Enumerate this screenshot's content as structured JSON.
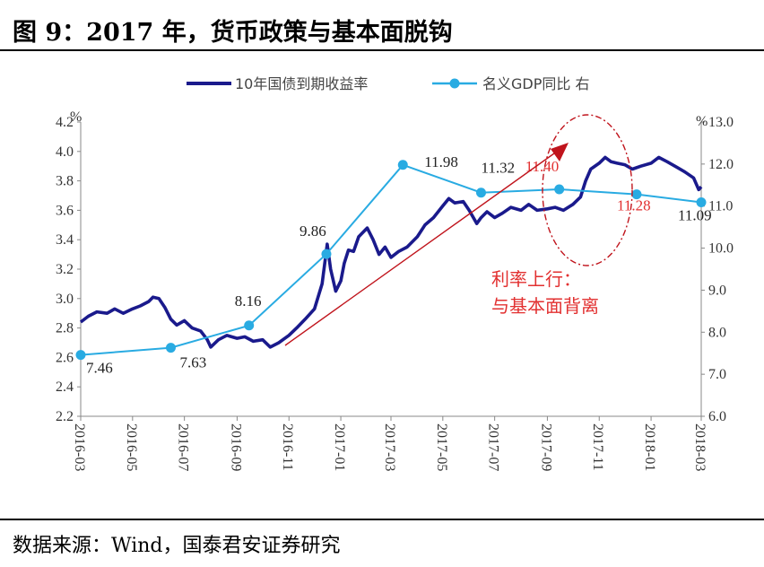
{
  "title": "图 9：2017 年，货币政策与基本面脱钩",
  "source": "数据来源：Wind，国泰君安证券研究",
  "colors": {
    "yield": "#1a1a8c",
    "gdp": "#29abe2",
    "arrow": "#c0141c",
    "annotation": "#e23030"
  },
  "chart_data": {
    "type": "line",
    "x_ticks": [
      "2016-03",
      "2016-05",
      "2016-07",
      "2016-09",
      "2016-11",
      "2017-01",
      "2017-03",
      "2017-05",
      "2017-07",
      "2017-09",
      "2017-11",
      "2018-01",
      "2018-03"
    ],
    "y_left": {
      "unit": "%",
      "range": [
        2.2,
        4.2
      ],
      "ticks": [
        "2.2",
        "2.4",
        "2.6",
        "2.8",
        "3.0",
        "3.2",
        "3.4",
        "3.6",
        "3.8",
        "4.0",
        "4.2"
      ]
    },
    "y_right": {
      "unit": "%",
      "range": [
        6.0,
        13.0
      ],
      "ticks": [
        "6.0",
        "7.0",
        "8.0",
        "9.0",
        "10.0",
        "11.0",
        "12.0",
        "13.0"
      ]
    },
    "legend": {
      "position": "top",
      "entries": [
        "10年国债到期收益率",
        "名义GDP同比 右"
      ]
    },
    "series": [
      {
        "name": "10年国债到期收益率",
        "axis": "left",
        "points": [
          [
            "2016-03-01",
            2.84
          ],
          [
            "2016-03-10",
            2.88
          ],
          [
            "2016-03-20",
            2.91
          ],
          [
            "2016-04-01",
            2.9
          ],
          [
            "2016-04-10",
            2.93
          ],
          [
            "2016-04-20",
            2.9
          ],
          [
            "2016-05-01",
            2.93
          ],
          [
            "2016-05-10",
            2.95
          ],
          [
            "2016-05-20",
            2.98
          ],
          [
            "2016-05-25",
            3.01
          ],
          [
            "2016-06-01",
            3.0
          ],
          [
            "2016-06-08",
            2.94
          ],
          [
            "2016-06-15",
            2.86
          ],
          [
            "2016-06-22",
            2.82
          ],
          [
            "2016-07-01",
            2.85
          ],
          [
            "2016-07-10",
            2.8
          ],
          [
            "2016-07-20",
            2.78
          ],
          [
            "2016-07-28",
            2.72
          ],
          [
            "2016-08-01",
            2.67
          ],
          [
            "2016-08-10",
            2.72
          ],
          [
            "2016-08-20",
            2.75
          ],
          [
            "2016-09-01",
            2.73
          ],
          [
            "2016-09-10",
            2.74
          ],
          [
            "2016-09-20",
            2.71
          ],
          [
            "2016-10-01",
            2.72
          ],
          [
            "2016-10-10",
            2.67
          ],
          [
            "2016-10-20",
            2.7
          ],
          [
            "2016-11-01",
            2.75
          ],
          [
            "2016-11-10",
            2.8
          ],
          [
            "2016-11-20",
            2.86
          ],
          [
            "2016-12-01",
            2.93
          ],
          [
            "2016-12-10",
            3.1
          ],
          [
            "2016-12-16",
            3.37
          ],
          [
            "2016-12-20",
            3.2
          ],
          [
            "2016-12-26",
            3.05
          ],
          [
            "2017-01-01",
            3.12
          ],
          [
            "2017-01-05",
            3.24
          ],
          [
            "2017-01-10",
            3.33
          ],
          [
            "2017-01-16",
            3.32
          ],
          [
            "2017-01-22",
            3.42
          ],
          [
            "2017-02-01",
            3.48
          ],
          [
            "2017-02-08",
            3.4
          ],
          [
            "2017-02-15",
            3.3
          ],
          [
            "2017-02-22",
            3.35
          ],
          [
            "2017-03-01",
            3.28
          ],
          [
            "2017-03-10",
            3.32
          ],
          [
            "2017-03-20",
            3.35
          ],
          [
            "2017-04-01",
            3.42
          ],
          [
            "2017-04-10",
            3.5
          ],
          [
            "2017-04-20",
            3.55
          ],
          [
            "2017-05-01",
            3.63
          ],
          [
            "2017-05-08",
            3.68
          ],
          [
            "2017-05-15",
            3.65
          ],
          [
            "2017-05-25",
            3.66
          ],
          [
            "2017-06-01",
            3.6
          ],
          [
            "2017-06-10",
            3.51
          ],
          [
            "2017-06-15",
            3.55
          ],
          [
            "2017-06-22",
            3.59
          ],
          [
            "2017-07-01",
            3.55
          ],
          [
            "2017-07-10",
            3.58
          ],
          [
            "2017-07-20",
            3.62
          ],
          [
            "2017-08-01",
            3.6
          ],
          [
            "2017-08-10",
            3.64
          ],
          [
            "2017-08-20",
            3.6
          ],
          [
            "2017-09-01",
            3.61
          ],
          [
            "2017-09-10",
            3.62
          ],
          [
            "2017-09-20",
            3.6
          ],
          [
            "2017-10-01",
            3.64
          ],
          [
            "2017-10-10",
            3.69
          ],
          [
            "2017-10-16",
            3.8
          ],
          [
            "2017-10-22",
            3.88
          ],
          [
            "2017-11-01",
            3.92
          ],
          [
            "2017-11-08",
            3.96
          ],
          [
            "2017-11-15",
            3.93
          ],
          [
            "2017-11-22",
            3.92
          ],
          [
            "2017-12-01",
            3.91
          ],
          [
            "2017-12-10",
            3.88
          ],
          [
            "2017-12-20",
            3.9
          ],
          [
            "2018-01-01",
            3.92
          ],
          [
            "2018-01-10",
            3.96
          ],
          [
            "2018-01-20",
            3.93
          ],
          [
            "2018-02-01",
            3.89
          ],
          [
            "2018-02-10",
            3.86
          ],
          [
            "2018-02-20",
            3.82
          ],
          [
            "2018-02-26",
            3.74
          ],
          [
            "2018-03-01",
            3.76
          ]
        ]
      },
      {
        "name": "名义GDP同比 右",
        "axis": "right",
        "points": [
          [
            "2016-03-01",
            7.46
          ],
          [
            "2016-06-15",
            7.63
          ],
          [
            "2016-09-15",
            8.16
          ],
          [
            "2016-12-15",
            9.86
          ],
          [
            "2017-03-15",
            11.98
          ],
          [
            "2017-06-15",
            11.32
          ],
          [
            "2017-09-15",
            11.4
          ],
          [
            "2017-12-15",
            11.28
          ],
          [
            "2018-03-01",
            11.09
          ]
        ],
        "labels": [
          "7.46",
          "7.63",
          "8.16",
          "9.86",
          "11.98",
          "11.32",
          "11.40",
          "11.28",
          "11.09"
        ]
      }
    ],
    "annotations": [
      "利率上行：",
      "与基本面背离"
    ]
  }
}
